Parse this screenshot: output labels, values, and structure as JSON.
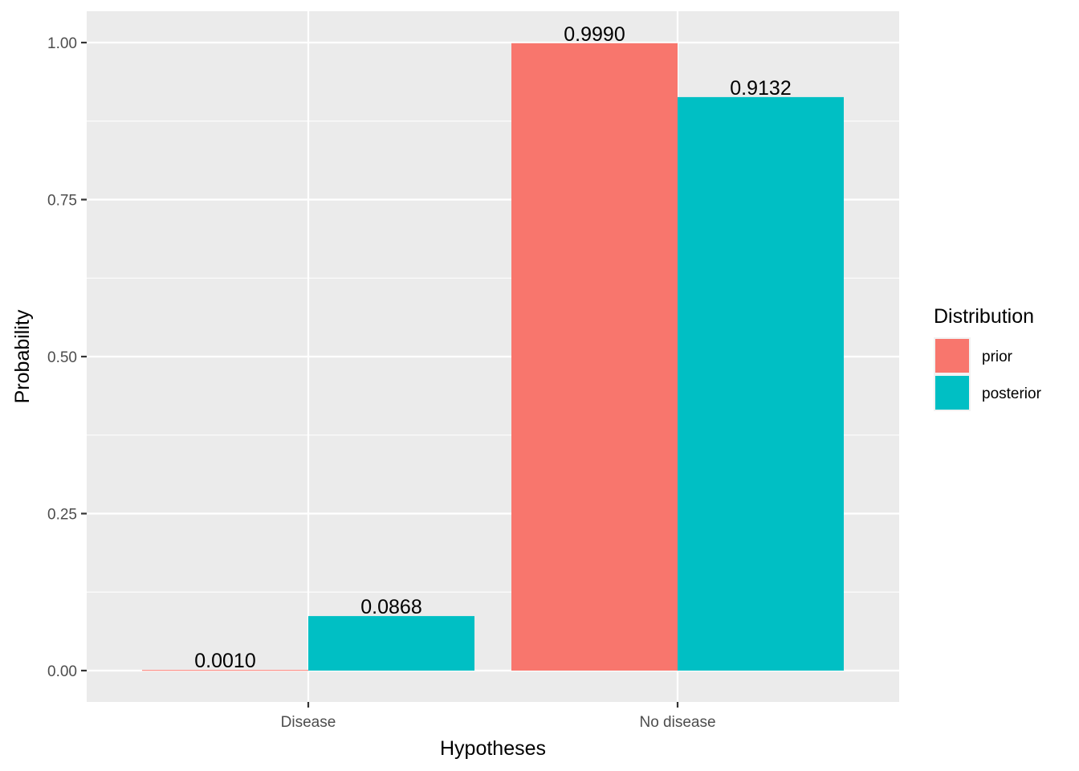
{
  "chart_data": {
    "type": "bar",
    "title": "",
    "xlabel": "Hypotheses",
    "ylabel": "Probability",
    "categories": [
      "Disease",
      "No disease"
    ],
    "series": [
      {
        "name": "prior",
        "color": "#F8766D",
        "values": [
          0.001,
          0.999
        ],
        "labels": [
          "0.0010",
          "0.9990"
        ]
      },
      {
        "name": "posterior",
        "color": "#00BFC4",
        "values": [
          0.0868,
          0.9132
        ],
        "labels": [
          "0.0868",
          "0.9132"
        ]
      }
    ],
    "ylim": [
      -0.0499,
      1.0499
    ],
    "yticks": [
      0.0,
      0.25,
      0.5,
      0.75,
      1.0
    ],
    "ytick_labels": [
      "0.00",
      "0.25",
      "0.50",
      "0.75",
      "1.00"
    ],
    "grid": true,
    "legend": {
      "title": "Distribution",
      "position": "right",
      "items": [
        "prior",
        "posterior"
      ]
    },
    "panel_background": "#EBEBEB",
    "grid_color": "#FFFFFF"
  }
}
